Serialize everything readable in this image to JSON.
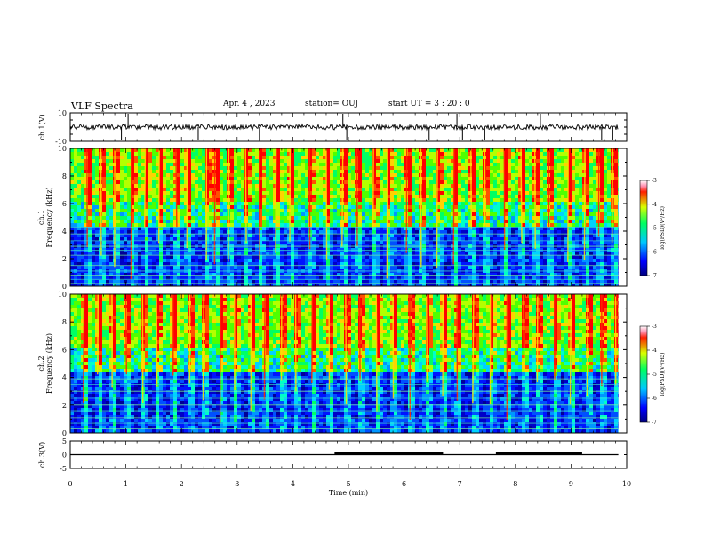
{
  "header": {
    "title": "VLF Spectra",
    "date": "Apr. 4  , 2023",
    "station": "station= OUJ",
    "start": "start  UT  =   3  : 20 : 0"
  },
  "colors": {
    "background": "#ffffff",
    "axis": "#000000",
    "trace": "#000000"
  },
  "chart_data": [
    {
      "type": "line",
      "panel": "ch.1 waveform",
      "ylabel": "ch.1(V)",
      "ylim": [
        -10,
        10
      ],
      "ytick_labels": [
        "10",
        "-10"
      ],
      "xlim": [
        0,
        10
      ],
      "baseline": 0,
      "spikes_x": [
        0.92,
        1.04,
        2.3,
        3.4,
        4.9,
        4.97,
        6.45,
        6.95,
        7.05,
        7.45,
        8.45,
        9.55,
        9.75
      ]
    },
    {
      "type": "heatmap",
      "panel": "ch.1 spectrogram",
      "ylabel_lines": [
        "ch.1",
        "Frequency  (kHz)"
      ],
      "ylim": [
        0,
        10
      ],
      "ytick_labels": [
        "0",
        "2",
        "4",
        "6",
        "8",
        "10"
      ],
      "xlim": [
        0,
        9.85
      ],
      "colorbar": {
        "label": "log(PSD)(V²/Hz)",
        "range": [
          -7,
          -3
        ],
        "ticks": [
          "-3",
          "-4",
          "-5",
          "-6",
          "-7"
        ]
      },
      "horizontal_lines_khz": [
        0.2,
        0.5,
        0.8,
        1.1,
        1.5,
        1.9,
        2.25,
        2.6,
        2.9,
        3.3,
        3.8,
        4.3
      ],
      "sferic_bursts_min": [
        0.3,
        0.55,
        0.8,
        1.1,
        1.35,
        1.6,
        1.9,
        2.1,
        2.45,
        2.6,
        2.85,
        3.15,
        3.4,
        3.7,
        3.95,
        4.3,
        4.6,
        4.9,
        5.15,
        5.45,
        5.7,
        6.05,
        6.3,
        6.6,
        6.9,
        7.2,
        7.45,
        7.8,
        8.1,
        8.35,
        8.6,
        8.95,
        9.25,
        9.5,
        9.75
      ]
    },
    {
      "type": "heatmap",
      "panel": "ch.2 spectrogram",
      "ylabel_lines": [
        "ch.2",
        "Frequency  (kHz)"
      ],
      "ylim": [
        0,
        10
      ],
      "ytick_labels": [
        "0",
        "2",
        "4",
        "6",
        "8",
        "10"
      ],
      "xlim": [
        0,
        9.85
      ],
      "colorbar": {
        "label": "log(PSD)(V²/Hz)",
        "range": [
          -7,
          -3
        ],
        "ticks": [
          "-3",
          "-4",
          "-5",
          "-6",
          "-7"
        ]
      },
      "horizontal_lines_khz": [
        0.3,
        0.7,
        1.1,
        1.6,
        2.0,
        2.5,
        3.0,
        3.5,
        3.9
      ],
      "sferic_bursts_min": [
        0.25,
        0.5,
        0.75,
        1.0,
        1.3,
        1.55,
        1.85,
        2.15,
        2.4,
        2.7,
        2.95,
        3.25,
        3.5,
        3.8,
        4.05,
        4.35,
        4.65,
        4.95,
        5.2,
        5.5,
        5.8,
        6.1,
        6.4,
        6.7,
        6.95,
        7.25,
        7.55,
        7.85,
        8.15,
        8.4,
        8.7,
        9.0,
        9.3,
        9.55,
        9.8
      ]
    },
    {
      "type": "line",
      "panel": "ch.3 level",
      "ylabel": "ch.3(V)",
      "ylim": [
        -5,
        5
      ],
      "ytick_labels": [
        "5",
        "0",
        "-5"
      ],
      "xlim": [
        0,
        10
      ],
      "level": 0,
      "thick_segments_min": [
        [
          4.75,
          6.7
        ],
        [
          7.65,
          9.2
        ]
      ],
      "trace_end_min": 9.85
    }
  ],
  "xaxis": {
    "label": "Time  (min)",
    "range": [
      0,
      10
    ],
    "tick_labels": [
      "0",
      "1",
      "2",
      "3",
      "4",
      "5",
      "6",
      "7",
      "8",
      "9",
      "10"
    ]
  }
}
